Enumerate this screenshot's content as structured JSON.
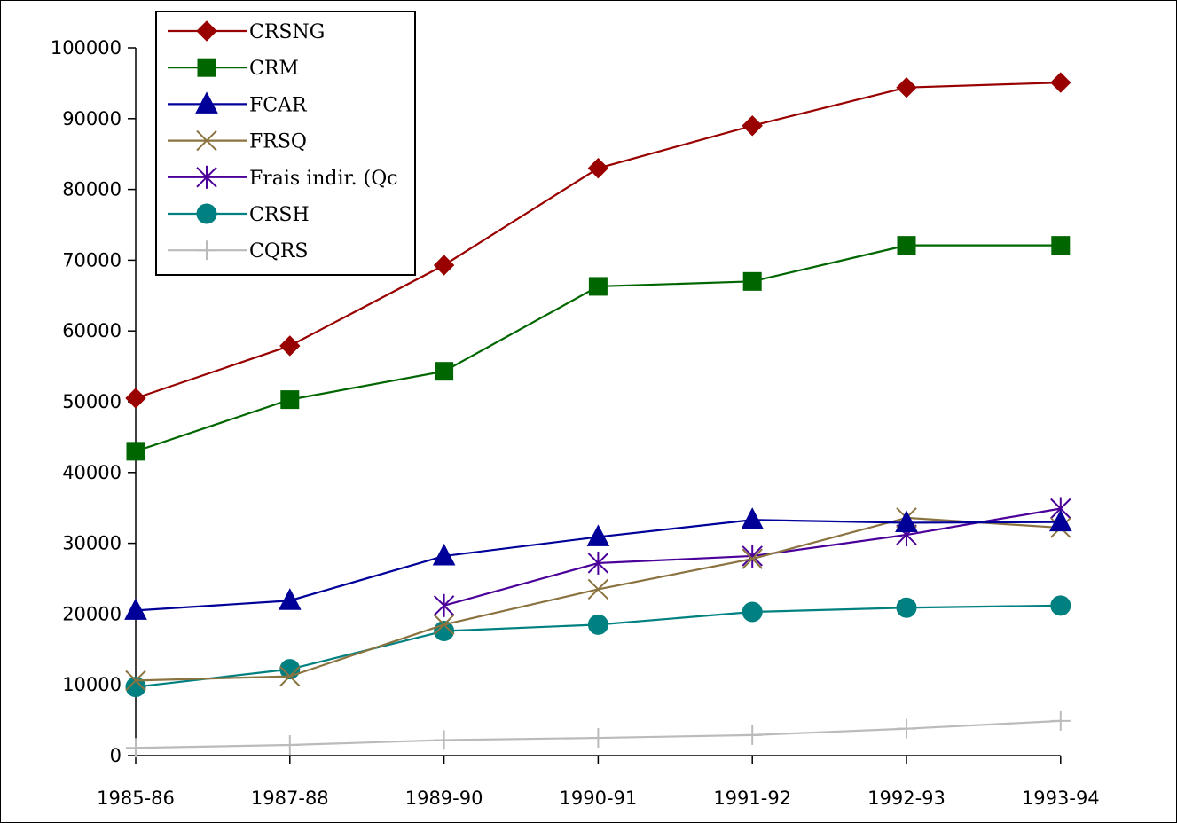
{
  "chart_data": {
    "type": "line",
    "categories": [
      "1985-86",
      "1987-88",
      "1989-90",
      "1990-91",
      "1991-92",
      "1992-93",
      "1993-94"
    ],
    "ylim": [
      0,
      100000
    ],
    "yticks": [
      0,
      10000,
      20000,
      30000,
      40000,
      50000,
      60000,
      70000,
      80000,
      90000,
      100000
    ],
    "grid": false,
    "legend_position": "top-left",
    "series": [
      {
        "name": "CRSNG",
        "color": "#990000",
        "marker": "diamond",
        "values": [
          50500,
          57900,
          69300,
          83000,
          89000,
          94400,
          95100
        ]
      },
      {
        "name": "CRM",
        "color": "#006600",
        "marker": "square",
        "values": [
          43000,
          50300,
          54300,
          66300,
          67000,
          72100,
          72100
        ]
      },
      {
        "name": "FCAR",
        "color": "#000099",
        "marker": "triangle",
        "values": [
          20500,
          21900,
          28200,
          30900,
          33300,
          32900,
          33000
        ]
      },
      {
        "name": "FRSQ",
        "color": "#8B7340",
        "marker": "x",
        "values": [
          10600,
          11200,
          18500,
          23500,
          27800,
          33600,
          32200
        ]
      },
      {
        "name": "Frais indir. (Qc",
        "color": "#4B0099",
        "marker": "asterisk",
        "values": [
          null,
          null,
          21200,
          27200,
          28200,
          31200,
          34900
        ]
      },
      {
        "name": "CRSH",
        "color": "#008080",
        "marker": "circle",
        "values": [
          9700,
          12200,
          17600,
          18500,
          20300,
          20900,
          21200
        ]
      },
      {
        "name": "CQRS",
        "color": "#BBBBBB",
        "marker": "plus",
        "values": [
          1100,
          1500,
          2200,
          2500,
          2900,
          3800,
          4900
        ]
      }
    ]
  }
}
